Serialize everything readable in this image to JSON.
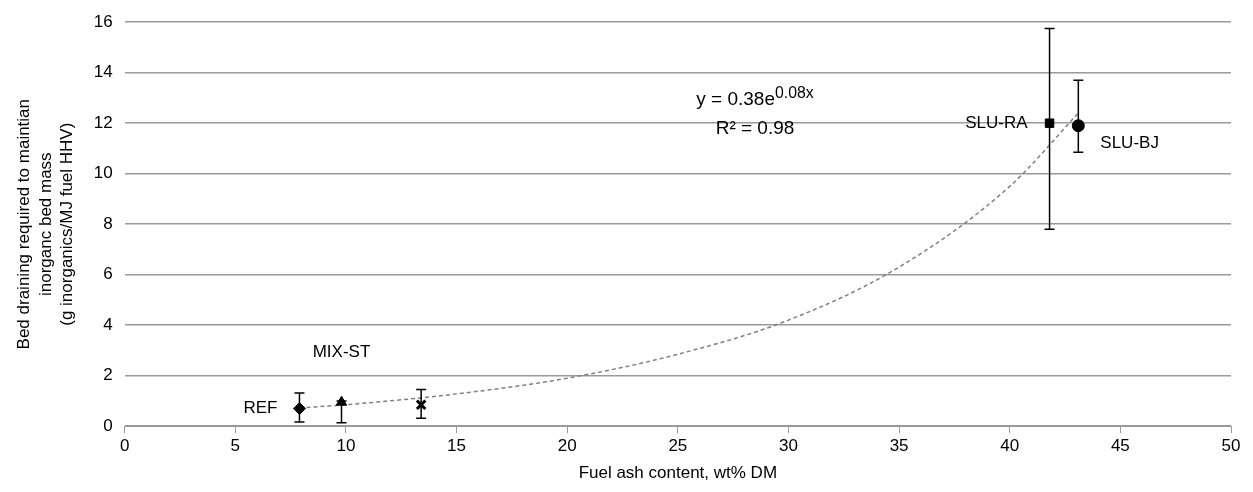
{
  "chart_data": {
    "type": "scatter",
    "xlabel": "Fuel ash content, wt% DM",
    "ylabel": "Bed draining required to maintian\ninorganc bed mass\n(g inorganics/MJ fuel HHV)",
    "xlim": [
      0,
      50
    ],
    "xticks": [
      0,
      5,
      10,
      15,
      20,
      25,
      30,
      35,
      40,
      45,
      50
    ],
    "ylim": [
      0,
      16
    ],
    "yticks": [
      0,
      2,
      4,
      6,
      8,
      10,
      12,
      14,
      16
    ],
    "grid": "y",
    "legend": false,
    "annotations": [
      "y = 0.38e$^{0.08x}$",
      "R² = 0.98"
    ],
    "series": [
      {
        "name": "REF",
        "color": "#000000",
        "marker": "diamond",
        "x": [
          7.9
        ],
        "values": [
          0.7
        ],
        "errors": [
          [
            0.17,
            1.31
          ]
        ]
      },
      {
        "name": "MIX-ST",
        "color": "#000000",
        "marker": "triangle",
        "x": [
          9.8
        ],
        "values": [
          0.95
        ],
        "errors": [
          [
            0.14,
            1.0
          ]
        ]
      },
      {
        "color": "#000000",
        "marker": "cross",
        "x": [
          13.4
        ],
        "values": [
          0.85
        ],
        "errors": [
          [
            0.31,
            1.45
          ]
        ]
      },
      {
        "name": "SLU-RA",
        "color": "#000000",
        "marker": "square",
        "x": [
          41.8
        ],
        "values": [
          12
        ],
        "errors": [
          [
            7.8,
            15.75
          ]
        ]
      },
      {
        "name": "SLU-BJ",
        "color": "#000000",
        "marker": "circle",
        "x": [
          43.1
        ],
        "values": [
          11.9
        ],
        "errors": [
          [
            10.85,
            13.7
          ]
        ]
      },
      {
        "type": "line",
        "color": "#808080",
        "line_style": "dashed",
        "marker": "none",
        "x": [
          7.9,
          10,
          15,
          20,
          25,
          30,
          35,
          40,
          43.1
        ],
        "values": [
          0.72,
          0.85,
          1.28,
          1.9,
          2.85,
          4.2,
          6.3,
          9.5,
          12.4
        ]
      }
    ]
  }
}
